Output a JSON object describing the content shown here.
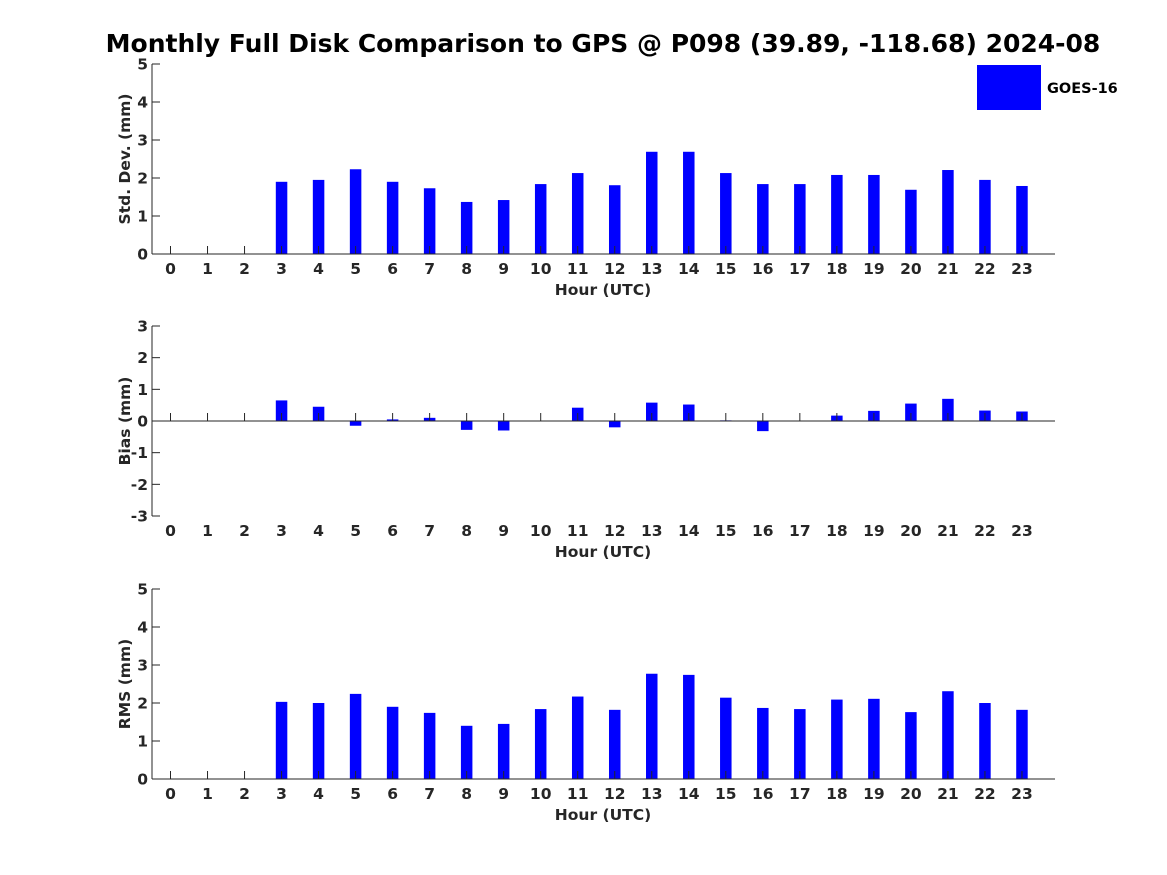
{
  "chart_data": [
    {
      "type": "bar",
      "title": "Monthly Full Disk Comparison to GPS @ P098 (39.89, -118.68) 2024-08",
      "xlabel": "Hour (UTC)",
      "ylabel": "Std. Dev. (mm)",
      "categories": [
        "0",
        "1",
        "2",
        "3",
        "4",
        "5",
        "6",
        "7",
        "8",
        "9",
        "10",
        "11",
        "12",
        "13",
        "14",
        "15",
        "16",
        "17",
        "18",
        "19",
        "20",
        "21",
        "22",
        "23"
      ],
      "yticks": [
        "0",
        "1",
        "2",
        "3",
        "4",
        "5"
      ],
      "ylim": [
        0,
        5
      ],
      "legend": {
        "entries": [
          "GOES-16"
        ],
        "position": "top-right"
      },
      "series": [
        {
          "name": "GOES-16",
          "color": "#0000ff",
          "values": [
            null,
            null,
            null,
            1.9,
            1.95,
            2.23,
            1.9,
            1.73,
            1.37,
            1.42,
            1.84,
            2.13,
            1.81,
            2.69,
            2.69,
            2.13,
            1.84,
            1.84,
            2.08,
            2.08,
            1.69,
            2.21,
            1.95,
            1.79
          ]
        }
      ],
      "grid": false
    },
    {
      "type": "bar",
      "xlabel": "Hour (UTC)",
      "ylabel": "Bias (mm)",
      "categories": [
        "0",
        "1",
        "2",
        "3",
        "4",
        "5",
        "6",
        "7",
        "8",
        "9",
        "10",
        "11",
        "12",
        "13",
        "14",
        "15",
        "16",
        "17",
        "18",
        "19",
        "20",
        "21",
        "22",
        "23"
      ],
      "yticks": [
        "-3",
        "-2",
        "-1",
        "0",
        "1",
        "2",
        "3"
      ],
      "ylim": [
        -3,
        3
      ],
      "series": [
        {
          "name": "GOES-16",
          "color": "#0000ff",
          "values": [
            null,
            null,
            null,
            0.65,
            0.45,
            -0.15,
            0.05,
            0.1,
            -0.28,
            -0.3,
            null,
            0.42,
            -0.2,
            0.58,
            0.52,
            0.02,
            -0.32,
            null,
            0.17,
            0.32,
            0.55,
            0.7,
            0.33,
            0.3
          ]
        }
      ],
      "grid": false
    },
    {
      "type": "bar",
      "xlabel": "Hour (UTC)",
      "ylabel": "RMS (mm)",
      "categories": [
        "0",
        "1",
        "2",
        "3",
        "4",
        "5",
        "6",
        "7",
        "8",
        "9",
        "10",
        "11",
        "12",
        "13",
        "14",
        "15",
        "16",
        "17",
        "18",
        "19",
        "20",
        "21",
        "22",
        "23"
      ],
      "yticks": [
        "0",
        "1",
        "2",
        "3",
        "4",
        "5"
      ],
      "ylim": [
        0,
        5
      ],
      "series": [
        {
          "name": "GOES-16",
          "color": "#0000ff",
          "values": [
            null,
            null,
            null,
            2.03,
            2.0,
            2.24,
            1.9,
            1.74,
            1.4,
            1.45,
            1.84,
            2.17,
            1.82,
            2.77,
            2.74,
            2.14,
            1.87,
            1.84,
            2.09,
            2.11,
            1.76,
            2.31,
            2.0,
            1.82
          ]
        }
      ],
      "grid": false
    }
  ]
}
